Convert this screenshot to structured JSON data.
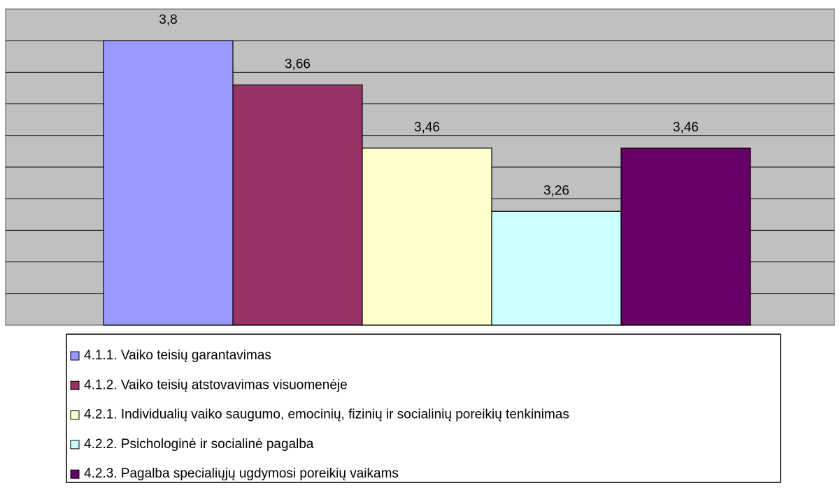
{
  "chart_data": {
    "type": "bar",
    "categories": [
      "4.1.1. Vaiko teisių garantavimas",
      "4.1.2. Vaiko teisių atstovavimas visuomenėje",
      "4.2.1. Individualių vaiko saugumo, emocinių, fizinių ir socialinių poreikių tenkinimas",
      "4.2.2. Psichologinė ir socialinė pagalba",
      "4.2.3. Pagalba specialiųjų ugdymosi poreikių vaikams"
    ],
    "values": [
      3.8,
      3.66,
      3.46,
      3.26,
      3.46
    ],
    "value_labels": [
      "3,8",
      "3,66",
      "3,46",
      "3,26",
      "3,46"
    ],
    "colors": [
      "#9999ff",
      "#993366",
      "#ffffcc",
      "#ccffff",
      "#660066"
    ],
    "ylim": [
      2.9,
      3.9
    ],
    "yticks": [
      3.0,
      3.1,
      3.2,
      3.3,
      3.4,
      3.5,
      3.6,
      3.7,
      3.8
    ],
    "grid": true
  }
}
